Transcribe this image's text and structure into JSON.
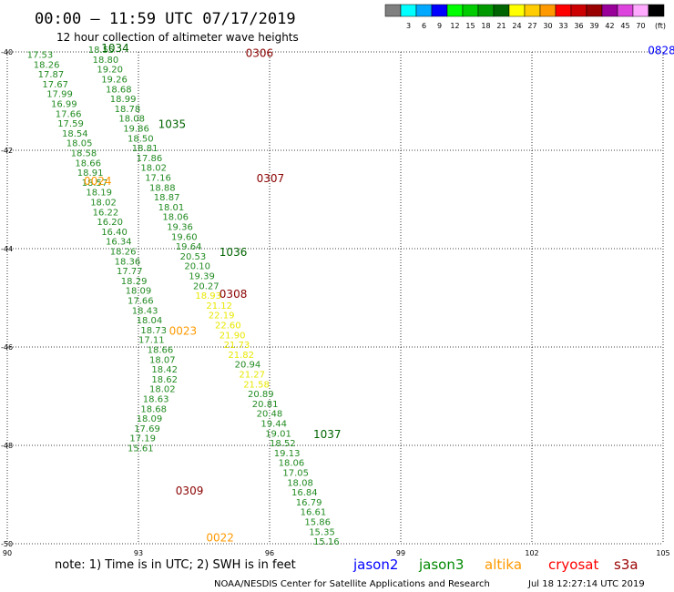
{
  "header": {
    "title": "00:00 – 11:59 UTC 07/17/2019",
    "subtitle": "12 hour collection of altimeter wave heights"
  },
  "legend": {
    "unit": "(ft)",
    "items": [
      {
        "value": "",
        "color": "#7f7f7f"
      },
      {
        "value": "3",
        "color": "#00ffff"
      },
      {
        "value": "6",
        "color": "#00a8ff"
      },
      {
        "value": "9",
        "color": "#0000ff"
      },
      {
        "value": "12",
        "color": "#00ff00"
      },
      {
        "value": "15",
        "color": "#00cc00"
      },
      {
        "value": "18",
        "color": "#009a00"
      },
      {
        "value": "21",
        "color": "#006400"
      },
      {
        "value": "24",
        "color": "#ffff00"
      },
      {
        "value": "27",
        "color": "#ffcc00"
      },
      {
        "value": "30",
        "color": "#ff9900"
      },
      {
        "value": "33",
        "color": "#ff0000"
      },
      {
        "value": "36",
        "color": "#cc0000"
      },
      {
        "value": "39",
        "color": "#990000"
      },
      {
        "value": "42",
        "color": "#990099"
      },
      {
        "value": "45",
        "color": "#dd44dd"
      },
      {
        "value": "70",
        "color": "#ffaaff"
      },
      {
        "value": "",
        "color": "#000000"
      }
    ]
  },
  "note": "note: 1) Time is in UTC; 2) SWH is in feet",
  "satellites": [
    {
      "name": "jason2",
      "color": "#0000ff"
    },
    {
      "name": "jason3",
      "color": "#008800"
    },
    {
      "name": "altika",
      "color": "#ff9900"
    },
    {
      "name": "cryosat",
      "color": "#ff0000"
    },
    {
      "name": "s3a",
      "color": "#990000"
    }
  ],
  "credit": "NOAA/NESDIS Center for Satellite Applications and Research",
  "timestamp": "Jul 18 12:27:14 UTC 2019",
  "chart_data": {
    "type": "scatter",
    "x_ticks": [
      90,
      93,
      96,
      99,
      102,
      105
    ],
    "y_ticks": [
      -40,
      -42,
      -44,
      -46,
      -48,
      -50
    ],
    "xlim": [
      90,
      105
    ],
    "ylim": [
      -50,
      -40
    ],
    "grid": true,
    "colors": {
      "green": "#228b22",
      "yellow": "#e8e800",
      "dgreen": "#006400",
      "orange": "#ff9900",
      "maroon": "#8b0000",
      "blue": "#0000ff"
    },
    "points": [
      {
        "x": 90.45,
        "y": -40.12,
        "t": "17.53",
        "c": "green"
      },
      {
        "x": 90.6,
        "y": -40.32,
        "t": "18.26",
        "c": "green"
      },
      {
        "x": 90.7,
        "y": -40.52,
        "t": "17.87",
        "c": "green"
      },
      {
        "x": 90.8,
        "y": -40.72,
        "t": "17.67",
        "c": "green"
      },
      {
        "x": 90.9,
        "y": -40.92,
        "t": "17.99",
        "c": "green"
      },
      {
        "x": 91.0,
        "y": -41.12,
        "t": "16.99",
        "c": "green"
      },
      {
        "x": 91.1,
        "y": -41.32,
        "t": "17.66",
        "c": "green"
      },
      {
        "x": 91.15,
        "y": -41.52,
        "t": "17.59",
        "c": "green"
      },
      {
        "x": 91.25,
        "y": -41.72,
        "t": "18.54",
        "c": "green"
      },
      {
        "x": 91.35,
        "y": -41.92,
        "t": "18.05",
        "c": "green"
      },
      {
        "x": 91.45,
        "y": -42.12,
        "t": "18.58",
        "c": "green"
      },
      {
        "x": 91.55,
        "y": -42.32,
        "t": "18.66",
        "c": "green"
      },
      {
        "x": 91.6,
        "y": -42.52,
        "t": "18.91",
        "c": "green"
      },
      {
        "x": 91.7,
        "y": -42.72,
        "t": "18.57",
        "c": "green"
      },
      {
        "x": 91.8,
        "y": -42.92,
        "t": "18.19",
        "c": "green"
      },
      {
        "x": 91.9,
        "y": -43.12,
        "t": "18.02",
        "c": "green"
      },
      {
        "x": 91.95,
        "y": -43.32,
        "t": "16.22",
        "c": "green"
      },
      {
        "x": 92.05,
        "y": -43.52,
        "t": "16.20",
        "c": "green"
      },
      {
        "x": 92.15,
        "y": -43.72,
        "t": "16.40",
        "c": "green"
      },
      {
        "x": 92.25,
        "y": -43.92,
        "t": "16.34",
        "c": "green"
      },
      {
        "x": 92.35,
        "y": -44.12,
        "t": "18.26",
        "c": "green"
      },
      {
        "x": 92.45,
        "y": -44.32,
        "t": "18.36",
        "c": "green"
      },
      {
        "x": 92.5,
        "y": -44.52,
        "t": "17.77",
        "c": "green"
      },
      {
        "x": 92.6,
        "y": -44.72,
        "t": "18.29",
        "c": "green"
      },
      {
        "x": 92.7,
        "y": -44.92,
        "t": "18.09",
        "c": "green"
      },
      {
        "x": 92.75,
        "y": -45.12,
        "t": "17.66",
        "c": "green"
      },
      {
        "x": 92.85,
        "y": -45.32,
        "t": "18.43",
        "c": "green"
      },
      {
        "x": 92.95,
        "y": -45.52,
        "t": "18.04",
        "c": "green"
      },
      {
        "x": 93.05,
        "y": -45.72,
        "t": "18.73",
        "c": "green"
      },
      {
        "x": 93.0,
        "y": -45.92,
        "t": "17.11",
        "c": "green"
      },
      {
        "x": 93.2,
        "y": -46.12,
        "t": "18.66",
        "c": "green"
      },
      {
        "x": 93.25,
        "y": -46.32,
        "t": "18.07",
        "c": "green"
      },
      {
        "x": 93.3,
        "y": -46.52,
        "t": "18.42",
        "c": "green"
      },
      {
        "x": 93.3,
        "y": -46.72,
        "t": "18.62",
        "c": "green"
      },
      {
        "x": 93.25,
        "y": -46.92,
        "t": "18.02",
        "c": "green"
      },
      {
        "x": 93.1,
        "y": -47.12,
        "t": "18.63",
        "c": "green"
      },
      {
        "x": 93.05,
        "y": -47.32,
        "t": "18.68",
        "c": "green"
      },
      {
        "x": 92.95,
        "y": -47.52,
        "t": "18.09",
        "c": "green"
      },
      {
        "x": 92.9,
        "y": -47.72,
        "t": "17.69",
        "c": "green"
      },
      {
        "x": 92.8,
        "y": -47.92,
        "t": "17.19",
        "c": "green"
      },
      {
        "x": 92.75,
        "y": -48.12,
        "t": "15.61",
        "c": "green"
      },
      {
        "x": 91.85,
        "y": -40.02,
        "t": "18.55",
        "c": "green"
      },
      {
        "x": 91.95,
        "y": -40.22,
        "t": "18.80",
        "c": "green"
      },
      {
        "x": 92.05,
        "y": -40.42,
        "t": "19.20",
        "c": "green"
      },
      {
        "x": 92.15,
        "y": -40.62,
        "t": "19.26",
        "c": "green"
      },
      {
        "x": 92.25,
        "y": -40.82,
        "t": "18.68",
        "c": "green"
      },
      {
        "x": 92.35,
        "y": -41.02,
        "t": "18.99",
        "c": "green"
      },
      {
        "x": 92.45,
        "y": -41.22,
        "t": "18.78",
        "c": "green"
      },
      {
        "x": 92.55,
        "y": -41.42,
        "t": "18.08",
        "c": "green"
      },
      {
        "x": 92.65,
        "y": -41.62,
        "t": "19.86",
        "c": "green"
      },
      {
        "x": 92.75,
        "y": -41.82,
        "t": "18.50",
        "c": "green"
      },
      {
        "x": 92.85,
        "y": -42.02,
        "t": "18.81",
        "c": "green"
      },
      {
        "x": 92.95,
        "y": -42.22,
        "t": "17.86",
        "c": "green"
      },
      {
        "x": 93.05,
        "y": -42.42,
        "t": "18.02",
        "c": "green"
      },
      {
        "x": 93.15,
        "y": -42.62,
        "t": "17.16",
        "c": "green"
      },
      {
        "x": 93.25,
        "y": -42.82,
        "t": "18.88",
        "c": "green"
      },
      {
        "x": 93.35,
        "y": -43.02,
        "t": "18.87",
        "c": "green"
      },
      {
        "x": 93.45,
        "y": -43.22,
        "t": "18.01",
        "c": "green"
      },
      {
        "x": 93.55,
        "y": -43.42,
        "t": "18.06",
        "c": "green"
      },
      {
        "x": 93.65,
        "y": -43.62,
        "t": "19.36",
        "c": "green"
      },
      {
        "x": 93.75,
        "y": -43.82,
        "t": "19.60",
        "c": "green"
      },
      {
        "x": 93.85,
        "y": -44.02,
        "t": "19.64",
        "c": "green"
      },
      {
        "x": 93.95,
        "y": -44.22,
        "t": "20.53",
        "c": "green"
      },
      {
        "x": 94.05,
        "y": -44.42,
        "t": "20.10",
        "c": "green"
      },
      {
        "x": 94.15,
        "y": -44.62,
        "t": "19.39",
        "c": "green"
      },
      {
        "x": 94.25,
        "y": -44.82,
        "t": "20.27",
        "c": "green"
      },
      {
        "x": 94.3,
        "y": -45.02,
        "t": "18.93",
        "c": "yellow"
      },
      {
        "x": 94.55,
        "y": -45.22,
        "t": "21.12",
        "c": "yellow"
      },
      {
        "x": 94.6,
        "y": -45.42,
        "t": "22.19",
        "c": "yellow"
      },
      {
        "x": 94.75,
        "y": -45.62,
        "t": "22.60",
        "c": "yellow"
      },
      {
        "x": 94.85,
        "y": -45.82,
        "t": "21.90",
        "c": "yellow"
      },
      {
        "x": 94.95,
        "y": -46.02,
        "t": "21.73",
        "c": "yellow"
      },
      {
        "x": 95.05,
        "y": -46.22,
        "t": "21.82",
        "c": "yellow"
      },
      {
        "x": 95.2,
        "y": -46.42,
        "t": "20.94",
        "c": "green"
      },
      {
        "x": 95.3,
        "y": -46.62,
        "t": "21.27",
        "c": "yellow"
      },
      {
        "x": 95.4,
        "y": -46.82,
        "t": "21.58",
        "c": "yellow"
      },
      {
        "x": 95.5,
        "y": -47.02,
        "t": "20.89",
        "c": "green"
      },
      {
        "x": 95.6,
        "y": -47.22,
        "t": "20.81",
        "c": "green"
      },
      {
        "x": 95.7,
        "y": -47.42,
        "t": "20.48",
        "c": "green"
      },
      {
        "x": 95.8,
        "y": -47.62,
        "t": "19.44",
        "c": "green"
      },
      {
        "x": 95.9,
        "y": -47.82,
        "t": "19.01",
        "c": "green"
      },
      {
        "x": 96.0,
        "y": -48.02,
        "t": "18.52",
        "c": "green"
      },
      {
        "x": 96.1,
        "y": -48.22,
        "t": "19.13",
        "c": "green"
      },
      {
        "x": 96.2,
        "y": -48.42,
        "t": "18.06",
        "c": "green"
      },
      {
        "x": 96.3,
        "y": -48.62,
        "t": "17.05",
        "c": "green"
      },
      {
        "x": 96.4,
        "y": -48.82,
        "t": "18.08",
        "c": "green"
      },
      {
        "x": 96.5,
        "y": -49.02,
        "t": "16.84",
        "c": "green"
      },
      {
        "x": 96.6,
        "y": -49.22,
        "t": "16.79",
        "c": "green"
      },
      {
        "x": 96.7,
        "y": -49.42,
        "t": "16.61",
        "c": "green"
      },
      {
        "x": 96.8,
        "y": -49.62,
        "t": "15.86",
        "c": "green"
      },
      {
        "x": 96.9,
        "y": -49.82,
        "t": "15.35",
        "c": "green"
      },
      {
        "x": 97.0,
        "y": -50.02,
        "t": "15.16",
        "c": "green"
      }
    ],
    "labels": [
      {
        "x": 92.15,
        "y": -40.0,
        "t": "1034",
        "c": "dgreen",
        "s": 12
      },
      {
        "x": 93.45,
        "y": -41.55,
        "t": "1035",
        "c": "dgreen",
        "s": 12
      },
      {
        "x": 91.75,
        "y": -42.7,
        "t": "0024",
        "c": "orange",
        "s": 12
      },
      {
        "x": 94.85,
        "y": -44.15,
        "t": "1036",
        "c": "dgreen",
        "s": 12
      },
      {
        "x": 94.85,
        "y": -45.0,
        "t": "0308",
        "c": "maroon",
        "s": 12
      },
      {
        "x": 95.45,
        "y": -40.1,
        "t": "0306",
        "c": "maroon",
        "s": 12
      },
      {
        "x": 95.7,
        "y": -42.65,
        "t": "0307",
        "c": "maroon",
        "s": 12
      },
      {
        "x": 97.0,
        "y": -47.85,
        "t": "1037",
        "c": "dgreen",
        "s": 12
      },
      {
        "x": 93.85,
        "y": -49.0,
        "t": "0309",
        "c": "maroon",
        "s": 12
      },
      {
        "x": 93.7,
        "y": -45.75,
        "t": "0023",
        "c": "orange",
        "s": 12
      },
      {
        "x": 94.55,
        "y": -49.95,
        "t": "0022",
        "c": "orange",
        "s": 12
      },
      {
        "x": 104.65,
        "y": -40.05,
        "t": "0828",
        "c": "blue",
        "s": 12
      }
    ]
  }
}
